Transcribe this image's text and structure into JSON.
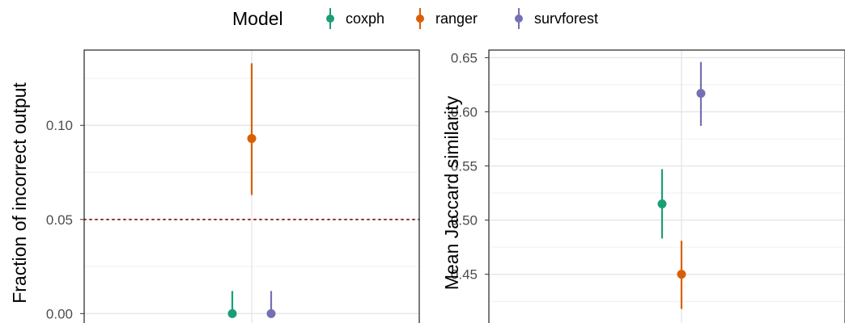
{
  "legend": {
    "title": "Model",
    "items": [
      {
        "label": "coxph",
        "color": "#1b9e77"
      },
      {
        "label": "ranger",
        "color": "#d95f02"
      },
      {
        "label": "survforest",
        "color": "#7570b3"
      }
    ]
  },
  "chart_data": [
    {
      "type": "pointrange",
      "ylabel": "Fraction of incorrect output",
      "ylim": [
        -0.005,
        0.14
      ],
      "yticks": [
        0.0,
        0.05,
        0.1
      ],
      "ytick_labels": [
        "0.00",
        "0.05",
        "0.10"
      ],
      "reference_line": {
        "y": 0.05,
        "style": "dotted",
        "color": "#8b1a1a"
      },
      "grid": true,
      "series": [
        {
          "name": "coxph",
          "x_offset": -1,
          "y": 0.0,
          "ymin": 0.0,
          "ymax": 0.012
        },
        {
          "name": "ranger",
          "x_offset": 0,
          "y": 0.093,
          "ymin": 0.063,
          "ymax": 0.133
        },
        {
          "name": "survforest",
          "x_offset": 1,
          "y": 0.0,
          "ymin": 0.0,
          "ymax": 0.012
        }
      ]
    },
    {
      "type": "pointrange",
      "ylabel": "Mean Jaccard similarity",
      "ylim": [
        0.405,
        0.657
      ],
      "yticks": [
        0.45,
        0.5,
        0.55,
        0.6,
        0.65
      ],
      "ytick_labels": [
        "0.45",
        "0.50",
        "0.55",
        "0.60",
        "0.65"
      ],
      "grid": true,
      "series": [
        {
          "name": "coxph",
          "x_offset": -1,
          "y": 0.515,
          "ymin": 0.483,
          "ymax": 0.547
        },
        {
          "name": "ranger",
          "x_offset": 0,
          "y": 0.45,
          "ymin": 0.418,
          "ymax": 0.481
        },
        {
          "name": "survforest",
          "x_offset": 1,
          "y": 0.617,
          "ymin": 0.587,
          "ymax": 0.646
        }
      ]
    }
  ]
}
